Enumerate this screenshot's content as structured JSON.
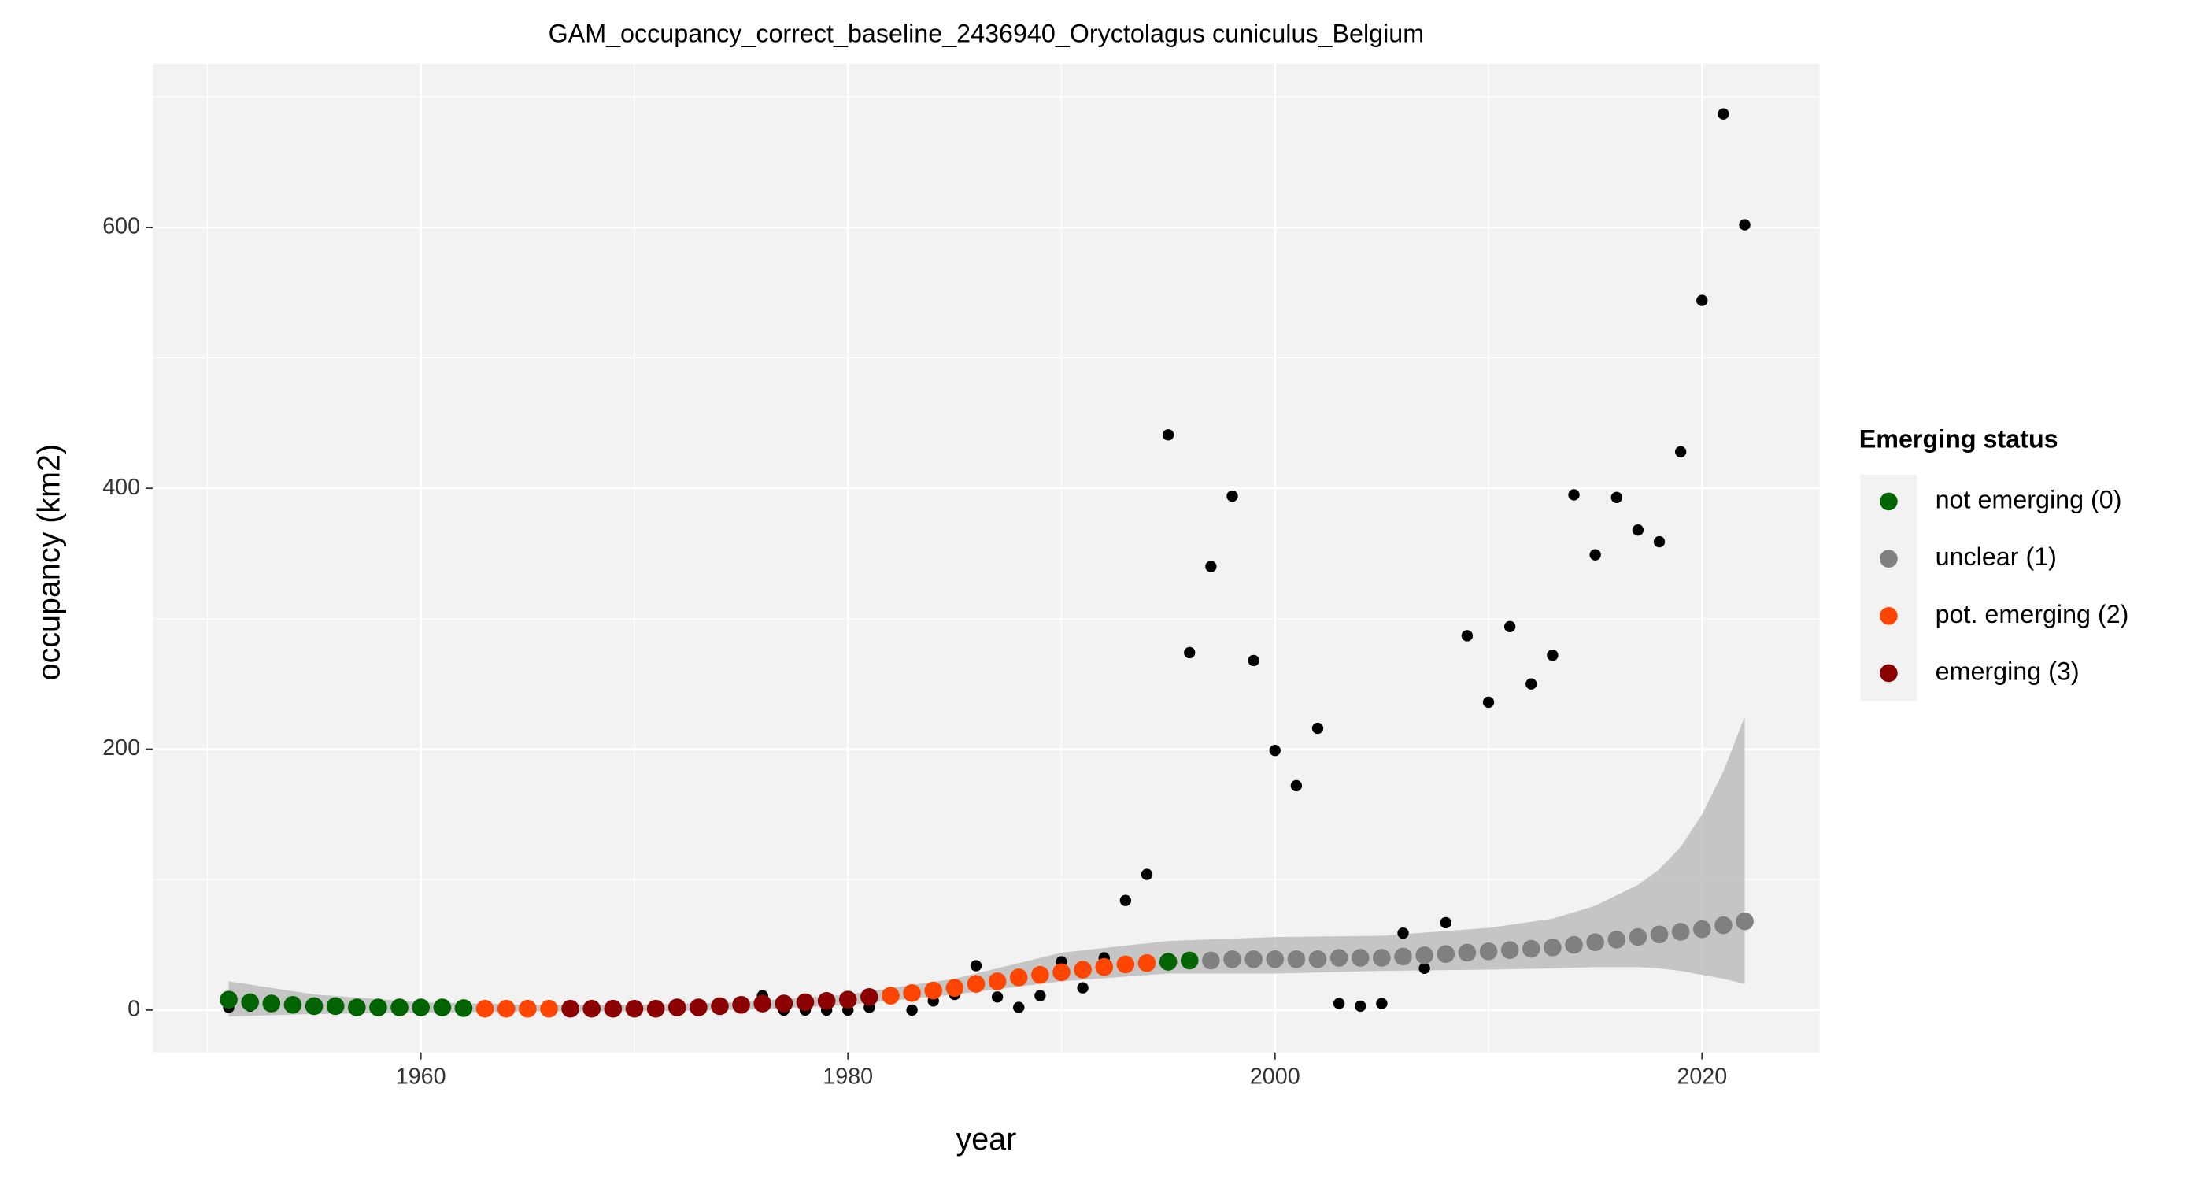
{
  "chart_data": {
    "type": "scatter",
    "title": "GAM_occupancy_correct_baseline_2436940_Oryctolagus cuniculus_Belgium",
    "x_label": "year",
    "y_label": "occupancy (km2)",
    "xlim": [
      1947.45,
      2025.5
    ],
    "ylim": [
      -32.5,
      725.6
    ],
    "xticks": [
      1960,
      1980,
      2000,
      2020
    ],
    "yticks": [
      0,
      200,
      400,
      600
    ],
    "xminorticks": [
      1950,
      1970,
      1990,
      2010
    ],
    "yminorticks": [
      100,
      300,
      500,
      700
    ],
    "grid": true,
    "observed_color": "#000000",
    "band_color": "#bdbdbd",
    "x": [
      1951,
      1952,
      1953,
      1954,
      1955,
      1956,
      1957,
      1958,
      1959,
      1960,
      1961,
      1962,
      1963,
      1964,
      1965,
      1966,
      1967,
      1968,
      1969,
      1970,
      1971,
      1972,
      1973,
      1974,
      1975,
      1976,
      1977,
      1978,
      1979,
      1980,
      1981,
      1982,
      1983,
      1984,
      1985,
      1986,
      1987,
      1988,
      1989,
      1990,
      1991,
      1992,
      1993,
      1994,
      1995,
      1996,
      1997,
      1998,
      1999,
      2000,
      2001,
      2002,
      2003,
      2004,
      2005,
      2006,
      2007,
      2008,
      2009,
      2010,
      2011,
      2012,
      2013,
      2014,
      2015,
      2016,
      2017,
      2018,
      2019,
      2020,
      2021,
      2022
    ],
    "observed": [
      2,
      3,
      5,
      3,
      1,
      1,
      1,
      1,
      1,
      1,
      1,
      1,
      1,
      1,
      1,
      1,
      1,
      1,
      1,
      1,
      1,
      1,
      1,
      1,
      2,
      11,
      0,
      0,
      0,
      0,
      2,
      10,
      0,
      7,
      12,
      34,
      10,
      2,
      11,
      37,
      17,
      40,
      84,
      104,
      441,
      274,
      340,
      394,
      268,
      199,
      172,
      216,
      5,
      3,
      5,
      59,
      32,
      67,
      287,
      236,
      294,
      250,
      272,
      395,
      349,
      393,
      368,
      359,
      428,
      544,
      687,
      602
    ],
    "fitted": [
      8,
      6,
      5,
      4,
      3,
      3,
      2,
      2,
      2,
      2,
      2,
      1.5,
      1,
      1,
      1,
      1,
      1,
      1,
      1,
      1,
      1,
      2,
      2,
      3,
      4,
      5,
      5,
      6,
      7,
      8,
      10,
      11,
      13,
      15,
      17,
      20,
      22,
      25,
      27,
      29,
      31,
      33,
      35,
      36,
      37,
      38,
      38,
      39,
      39,
      39,
      39,
      39,
      40,
      40,
      40,
      41,
      42,
      43,
      44,
      45,
      46,
      47,
      48,
      50,
      52,
      54,
      56,
      58,
      60,
      62,
      65,
      68
    ],
    "status": [
      0,
      0,
      0,
      0,
      0,
      0,
      0,
      0,
      0,
      0,
      0,
      0,
      2,
      2,
      2,
      2,
      3,
      3,
      3,
      3,
      3,
      3,
      3,
      3,
      3,
      3,
      3,
      3,
      3,
      3,
      3,
      2,
      2,
      2,
      2,
      2,
      2,
      2,
      2,
      2,
      2,
      2,
      2,
      2,
      0,
      0,
      1,
      1,
      1,
      1,
      1,
      1,
      1,
      1,
      1,
      1,
      1,
      1,
      1,
      1,
      1,
      1,
      1,
      1,
      1,
      1,
      1,
      1,
      1,
      1,
      1,
      1
    ],
    "band": {
      "x": [
        1951,
        1955,
        1960,
        1965,
        1970,
        1975,
        1980,
        1985,
        1990,
        1995,
        2000,
        2005,
        2010,
        2013,
        2015,
        2017,
        2018,
        2019,
        2020,
        2021,
        2022
      ],
      "upper": [
        22,
        12,
        6,
        4,
        4,
        6,
        12,
        24,
        44,
        53,
        56,
        57,
        63,
        70,
        80,
        96,
        108,
        125,
        150,
        183,
        225
      ],
      "lower": [
        -5,
        -3,
        -2,
        -1,
        -1,
        0,
        4,
        12,
        22,
        28,
        28,
        30,
        31,
        32,
        33,
        33,
        32,
        30,
        27,
        24,
        20
      ]
    },
    "legend": {
      "title": "Emerging status",
      "position": "right",
      "labels": [
        "not emerging (0)",
        "unclear (1)",
        "pot. emerging (2)",
        "emerging (3)"
      ],
      "colors": [
        "#006400",
        "#808080",
        "#ff4500",
        "#8b0000"
      ]
    }
  }
}
